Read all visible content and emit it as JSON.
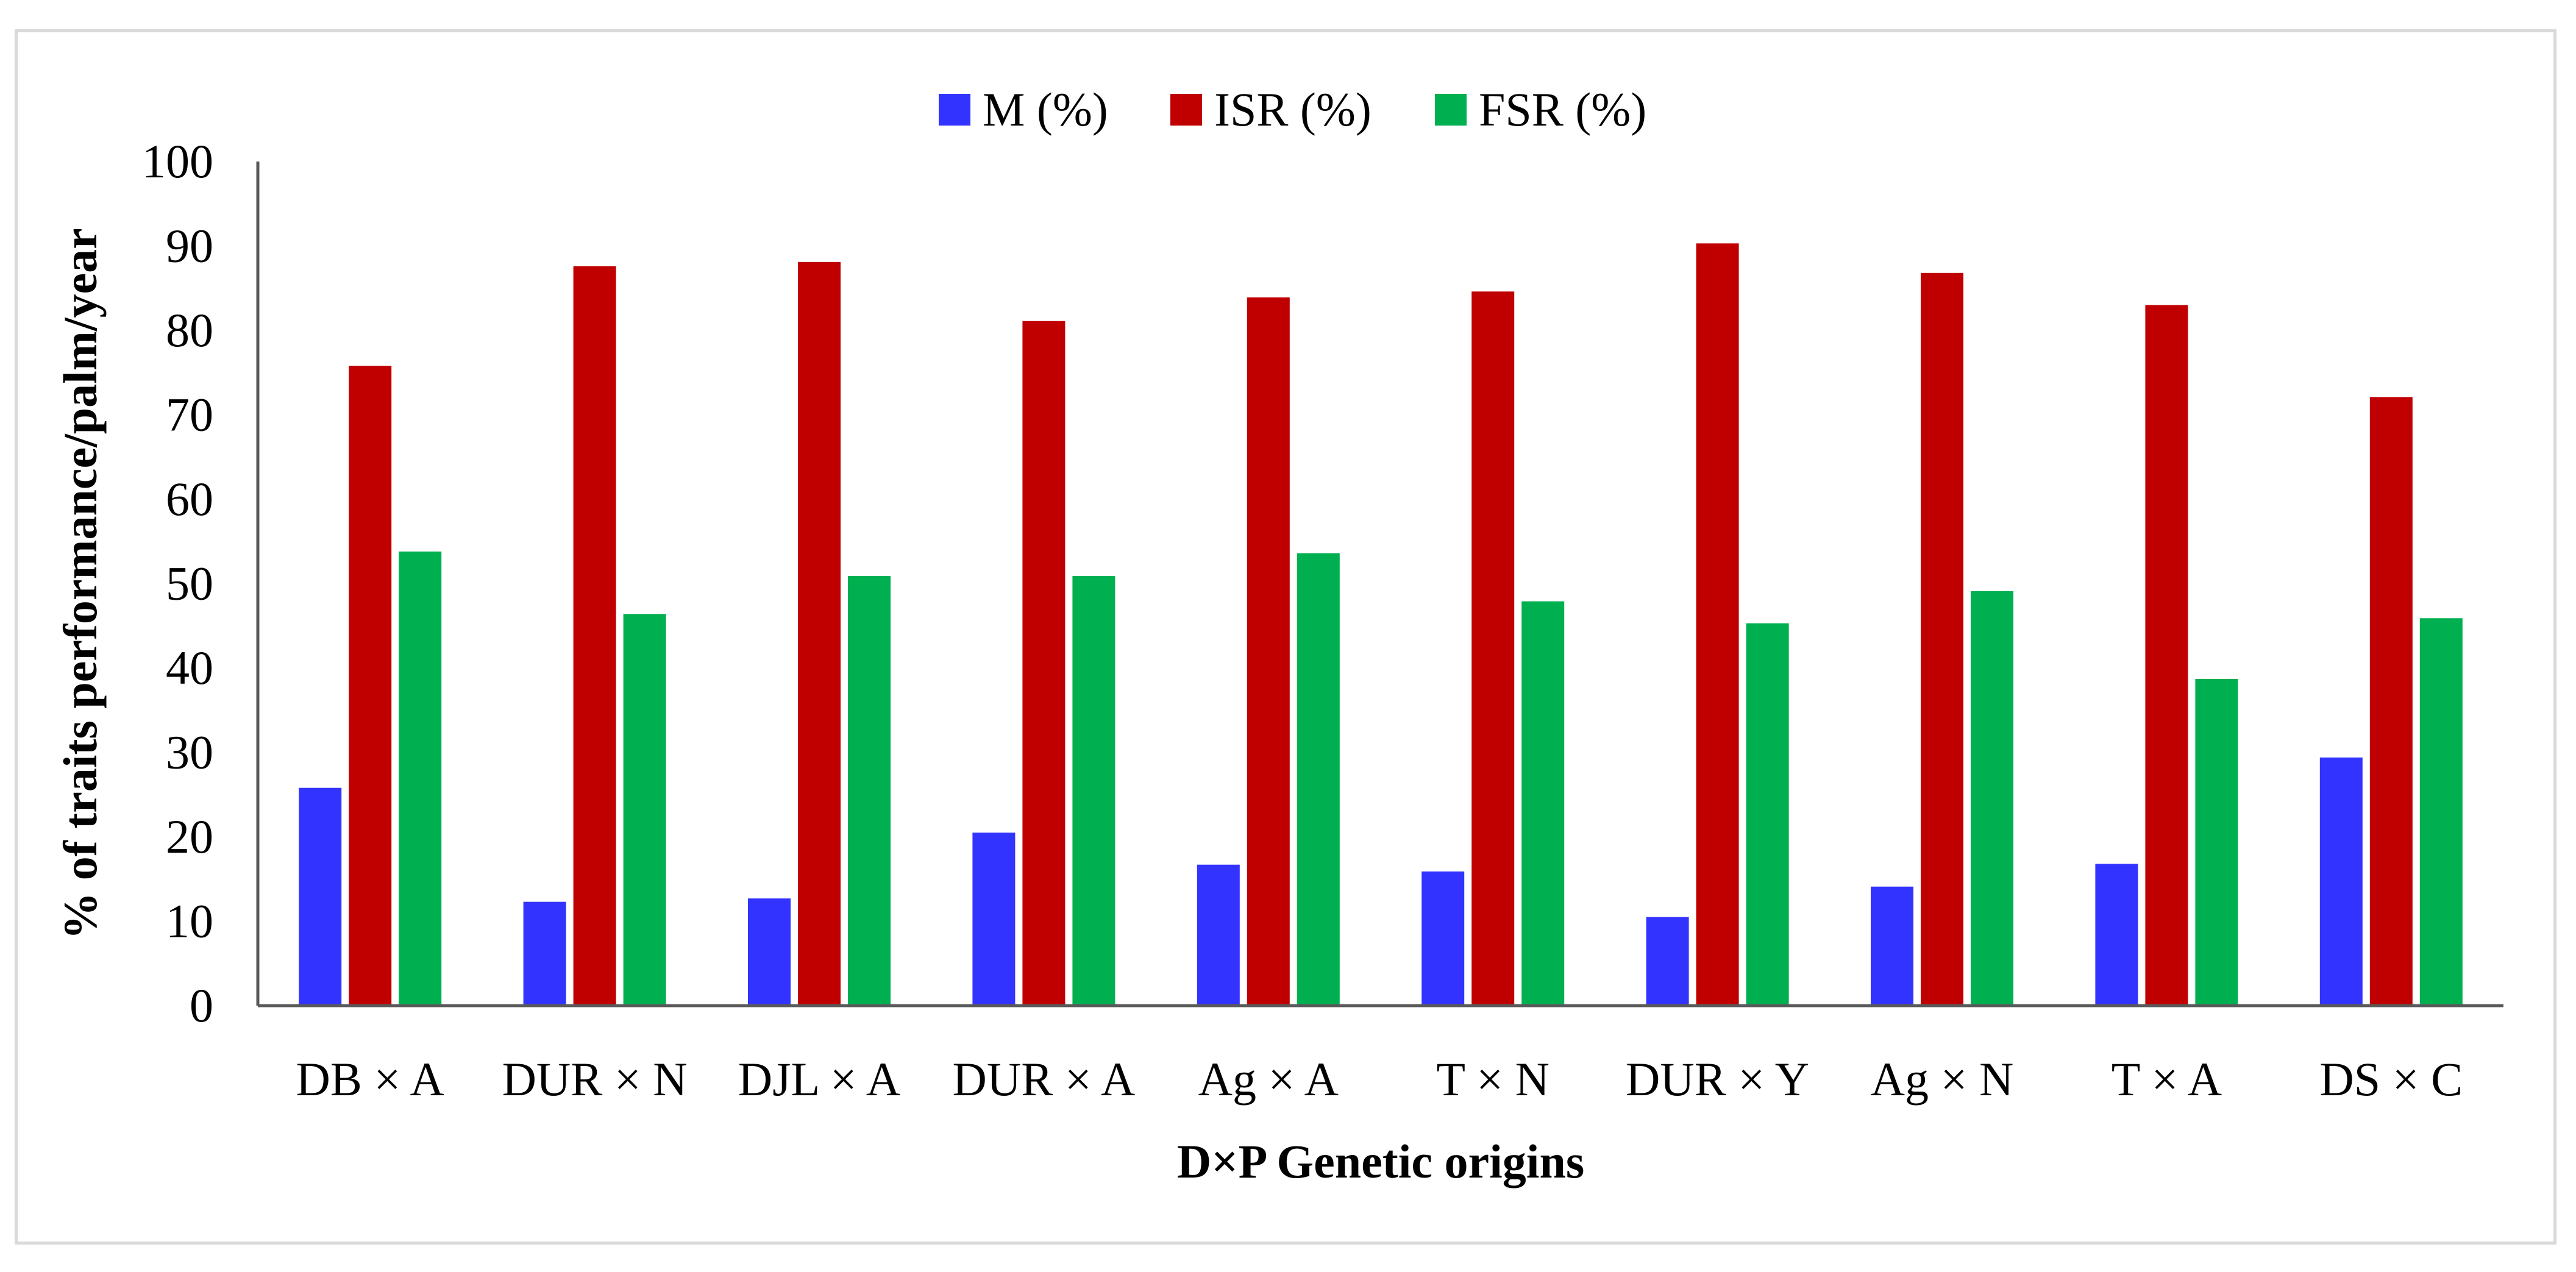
{
  "chart_data": {
    "type": "bar",
    "title": "",
    "xlabel": "D×P Genetic origins",
    "ylabel": "% of traits performance/palm/year",
    "ylim": [
      0,
      100
    ],
    "yticks": [
      0,
      10,
      20,
      30,
      40,
      50,
      60,
      70,
      80,
      90,
      100
    ],
    "categories": [
      "DB × A",
      "DUR × N",
      "DJL × A",
      "DUR × A",
      "Ag × A",
      "T × N",
      "DUR × Y",
      "Ag × N",
      "T × A",
      "DS × C"
    ],
    "series": [
      {
        "name": "M (%)",
        "color": "#3333ff",
        "values": [
          25.8,
          12.3,
          12.7,
          20.5,
          16.7,
          15.9,
          10.5,
          14.1,
          16.8,
          29.4
        ]
      },
      {
        "name": "ISR (%)",
        "color": "#c00000",
        "values": [
          75.8,
          87.6,
          88.1,
          81.1,
          83.9,
          84.6,
          90.3,
          86.8,
          83.0,
          72.1
        ]
      },
      {
        "name": "FSR (%)",
        "color": "#00b050",
        "values": [
          53.8,
          46.4,
          50.9,
          50.9,
          53.6,
          47.9,
          45.3,
          49.1,
          38.7,
          45.9
        ]
      }
    ],
    "legend_position": "top-center",
    "grid": false
  }
}
